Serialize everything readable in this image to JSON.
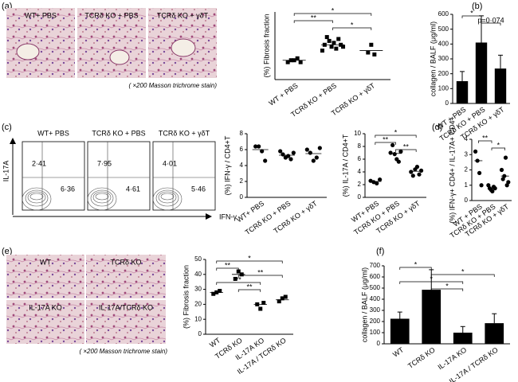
{
  "panel_labels": [
    "(a)",
    "(b)",
    "(c)",
    "(d)",
    "(e)",
    "(f)"
  ],
  "micrographs_a": {
    "labels": [
      "WT+ PBS",
      "TCRδ KO + PBS",
      "TCRδ KO + γδT"
    ],
    "caption": "( ×200 Masson trichrome stain)"
  },
  "micrographs_e": {
    "labels": [
      "WT",
      "TCRδ KO",
      "IL-17A KO",
      "IL-17A/TCRδ KO"
    ],
    "caption": "( ×200 Masson trichrome stain)"
  },
  "flow": {
    "y_label": "IL-17A",
    "x_label": "IFN-γ",
    "plots": [
      {
        "title": "WT+ PBS",
        "upper_left": "2·41",
        "right": "6·36"
      },
      {
        "title": "TCRδ KO + PBS",
        "upper_left": "7·95",
        "right": "4·61"
      },
      {
        "title": "TCRδ KO + γδT",
        "upper_left": "4·01",
        "right": "5·46"
      }
    ]
  },
  "chart_data": [
    {
      "type": "strip",
      "ylabel": "(%) Fibrosis fraction",
      "marker": "square",
      "color": "#000000",
      "categories": [
        "WT + PBS",
        "TCRδ KO + PBS",
        "TCRδ KO + γδT"
      ],
      "values": [
        [
          29,
          30,
          30,
          31,
          29
        ],
        [
          35,
          38,
          42,
          40,
          37,
          39,
          36,
          41,
          38,
          37
        ],
        [
          34,
          38,
          33
        ]
      ],
      "means": [
        30,
        38,
        35
      ],
      "ylim": [
        20,
        55
      ],
      "significance": [
        {
          "from": 0,
          "to": 2,
          "label": "*"
        },
        {
          "from": 0,
          "to": 1,
          "label": "**"
        },
        {
          "from": 1,
          "to": 2,
          "label": "*"
        }
      ]
    },
    {
      "type": "bar",
      "ylabel": "collagen / BALF (μg/ml)",
      "color": "#000000",
      "categories": [
        "WT + PBS",
        "TCRδ KO + PBS",
        "TCRδ KO + γδT"
      ],
      "values": [
        150,
        410,
        235
      ],
      "errors": [
        65,
        180,
        90
      ],
      "ylim": [
        0,
        600
      ],
      "yticks": [
        0,
        100,
        200,
        300,
        400,
        500,
        600
      ],
      "significance": [
        {
          "from": 0,
          "to": 1,
          "label": "*"
        },
        {
          "from": 1,
          "to": 2,
          "label": "p=0·074"
        }
      ]
    },
    {
      "type": "strip",
      "ylabel": "(%) IFN-γ / CD4+T",
      "marker": "circle",
      "color": "#000000",
      "categories": [
        "WT+ PBS",
        "TCRδ KO + PBS",
        "TCRδ KO + γδT"
      ],
      "values": [
        [
          6.4,
          6.4,
          5.8,
          4.6
        ],
        [
          5.8,
          5.4,
          5.0,
          5.2,
          4.8,
          5.6
        ],
        [
          6.0,
          5.6,
          4.6,
          5.0,
          6.2
        ]
      ],
      "means": [
        6.0,
        5.3,
        5.5
      ],
      "ylim": [
        0,
        8
      ],
      "yticks": [
        0,
        2,
        4,
        6,
        8
      ],
      "significance": []
    },
    {
      "type": "strip",
      "ylabel": "(%) IL-17A / CD4+T",
      "marker": "circle",
      "color": "#000000",
      "categories": [
        "WT+ PBS",
        "TCRδ KO + PBS",
        "TCRδ KO + γδT"
      ],
      "values": [
        [
          2.6,
          2.4,
          2.2,
          2.8
        ],
        [
          7.0,
          8.2,
          6.8,
          6.0,
          5.6,
          7.2
        ],
        [
          4.0,
          3.4,
          4.4,
          4.8,
          3.6,
          4.2
        ]
      ],
      "means": [
        2.5,
        6.9,
        4.1
      ],
      "ylim": [
        0,
        10
      ],
      "yticks": [
        0,
        2,
        4,
        6,
        8,
        10
      ],
      "significance": [
        {
          "from": 0,
          "to": 2,
          "label": "*"
        },
        {
          "from": 0,
          "to": 1,
          "label": "**"
        },
        {
          "from": 1,
          "to": 2,
          "label": "**"
        }
      ]
    },
    {
      "type": "strip",
      "ylabel": "(%) IFN-γ+ CD4+ / IL-17A+ CD4+",
      "marker": "circle",
      "color": "#000000",
      "categories": [
        "WT + PBS",
        "TCRδ KO + PBS",
        "TCRδ KO + γδT"
      ],
      "values": [
        [
          3.2,
          2.6,
          1.8,
          1.0
        ],
        [
          1.0,
          0.8,
          0.7,
          0.6,
          0.9,
          0.8
        ],
        [
          2.0,
          1.4,
          1.6,
          2.8,
          1.0,
          1.2
        ]
      ],
      "means": [
        2.6,
        0.8,
        1.6
      ],
      "ylim": [
        0,
        4
      ],
      "yticks": [
        0,
        1,
        2,
        3,
        4
      ],
      "significance": [
        {
          "from": 0,
          "to": 1,
          "label": "**"
        },
        {
          "from": 1,
          "to": 2,
          "label": "*"
        }
      ]
    },
    {
      "type": "strip",
      "ylabel": "(%) Fibrosis fraction",
      "marker": "square",
      "color": "#000000",
      "categories": [
        "WT",
        "TCRδ KO",
        "IL-17A KO",
        "IL-17A / TCRδ KO"
      ],
      "values": [
        [
          27,
          28,
          29
        ],
        [
          37,
          42,
          40
        ],
        [
          20,
          17,
          21
        ],
        [
          22,
          24,
          25
        ]
      ],
      "means": [
        28,
        40,
        20,
        23
      ],
      "ylim": [
        0,
        50
      ],
      "yticks": [
        0,
        10,
        20,
        30,
        40,
        50
      ],
      "significance": [
        {
          "from": 0,
          "to": 3,
          "label": "*"
        },
        {
          "from": 0,
          "to": 1,
          "label": "**"
        },
        {
          "from": 1,
          "to": 3,
          "label": "**"
        },
        {
          "from": 0,
          "to": 2,
          "label": "**"
        },
        {
          "from": 1,
          "to": 2,
          "label": "**"
        }
      ]
    },
    {
      "type": "bar",
      "ylabel": "collagen / BALF (μg/ml)",
      "color": "#000000",
      "categories": [
        "WT",
        "TCRδ KO",
        "IL-17A KO",
        "IL-17A / TCRδ KO"
      ],
      "values": [
        225,
        485,
        100,
        185
      ],
      "errors": [
        60,
        180,
        55,
        85
      ],
      "ylim": [
        0,
        700
      ],
      "yticks": [
        0,
        100,
        200,
        300,
        400,
        500,
        600,
        700
      ],
      "significance": [
        {
          "from": 0,
          "to": 1,
          "label": "*"
        },
        {
          "from": 1,
          "to": 3,
          "label": "*"
        },
        {
          "from": 0,
          "to": 2,
          "label": "*"
        },
        {
          "from": 1,
          "to": 2,
          "label": "*"
        }
      ]
    }
  ]
}
